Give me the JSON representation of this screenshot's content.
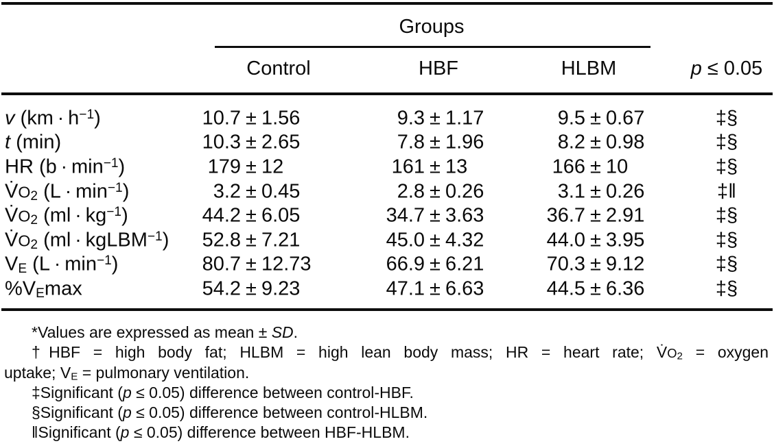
{
  "table": {
    "group_header": "Groups",
    "pm": "±",
    "col_headers": {
      "control": "Control",
      "hbf": "HBF",
      "hlbm": "HLBM",
      "p_html": "<i>p</i> ≤ 0.05"
    },
    "rows": [
      {
        "label_html": "<i>v</i> (km · h<sup>−1</sup>)",
        "control": {
          "mean": "10.7",
          "sd": "1.56"
        },
        "hbf": {
          "mean": "9.3",
          "sd": "1.17"
        },
        "hlbm": {
          "mean": "9.5",
          "sd": "0.67"
        },
        "p": "‡§"
      },
      {
        "label_html": "<i>t</i> (min)",
        "control": {
          "mean": "10.3",
          "sd": "2.65"
        },
        "hbf": {
          "mean": "7.8",
          "sd": "1.96"
        },
        "hlbm": {
          "mean": "8.2",
          "sd": "0.98"
        },
        "p": "‡§"
      },
      {
        "label_html": "HR (b · min<sup>−1</sup>)",
        "control": {
          "mean": "179",
          "sd": "12"
        },
        "hbf": {
          "mean": "161",
          "sd": "13"
        },
        "hlbm": {
          "mean": "166",
          "sd": "10"
        },
        "p": "‡§"
      },
      {
        "label_html": "V̇<span class='oc'>O</span><sub>2</sub> (L · min<sup>−1</sup>)",
        "control": {
          "mean": "3.2",
          "sd": "0.45"
        },
        "hbf": {
          "mean": "2.8",
          "sd": "0.26"
        },
        "hlbm": {
          "mean": "3.1",
          "sd": "0.26"
        },
        "p": "‡‖"
      },
      {
        "label_html": "V̇<span class='oc'>O</span><sub>2</sub> (ml · kg<sup>−1</sup>)",
        "control": {
          "mean": "44.2",
          "sd": "6.05"
        },
        "hbf": {
          "mean": "34.7",
          "sd": "3.63"
        },
        "hlbm": {
          "mean": "36.7",
          "sd": "2.91"
        },
        "p": "‡§"
      },
      {
        "label_html": "V̇<span class='oc'>O</span><sub>2</sub> (ml · kgLBM<sup>−1</sup>)",
        "control": {
          "mean": "52.8",
          "sd": "7.21"
        },
        "hbf": {
          "mean": "45.0",
          "sd": "4.32"
        },
        "hlbm": {
          "mean": "44.0",
          "sd": "3.95"
        },
        "p": "‡§"
      },
      {
        "label_html": "V<sub>E</sub> (L · min<sup>−1</sup>)",
        "control": {
          "mean": "80.7",
          "sd": "12.73"
        },
        "hbf": {
          "mean": "66.9",
          "sd": "6.21"
        },
        "hlbm": {
          "mean": "70.3",
          "sd": "9.12"
        },
        "p": "‡§"
      },
      {
        "label_html": "%V<sub>E</sub>max",
        "control": {
          "mean": "54.2",
          "sd": "9.23"
        },
        "hbf": {
          "mean": "47.1",
          "sd": "6.63"
        },
        "hlbm": {
          "mean": "44.5",
          "sd": "6.36"
        },
        "p": "‡§"
      }
    ]
  },
  "footnotes": [
    "*Values are expressed as mean ± <i>SD</i>.",
    "<span class='jline'>†HBF = high body fat; HLBM = high lean body mass; HR = heart rate; V̇<span class='oc'>O</span><sub>2</sub> = oxygen</span>uptake; V<sub>E</sub> = pulmonary ventilation.",
    "‡Significant (<i>p</i> ≤ 0.05) difference between control-HBF.",
    "§Significant (<i>p</i> ≤ 0.05) difference between control-HLBM.",
    "‖Significant (<i>p</i> ≤ 0.05) difference between HBF-HLBM."
  ]
}
